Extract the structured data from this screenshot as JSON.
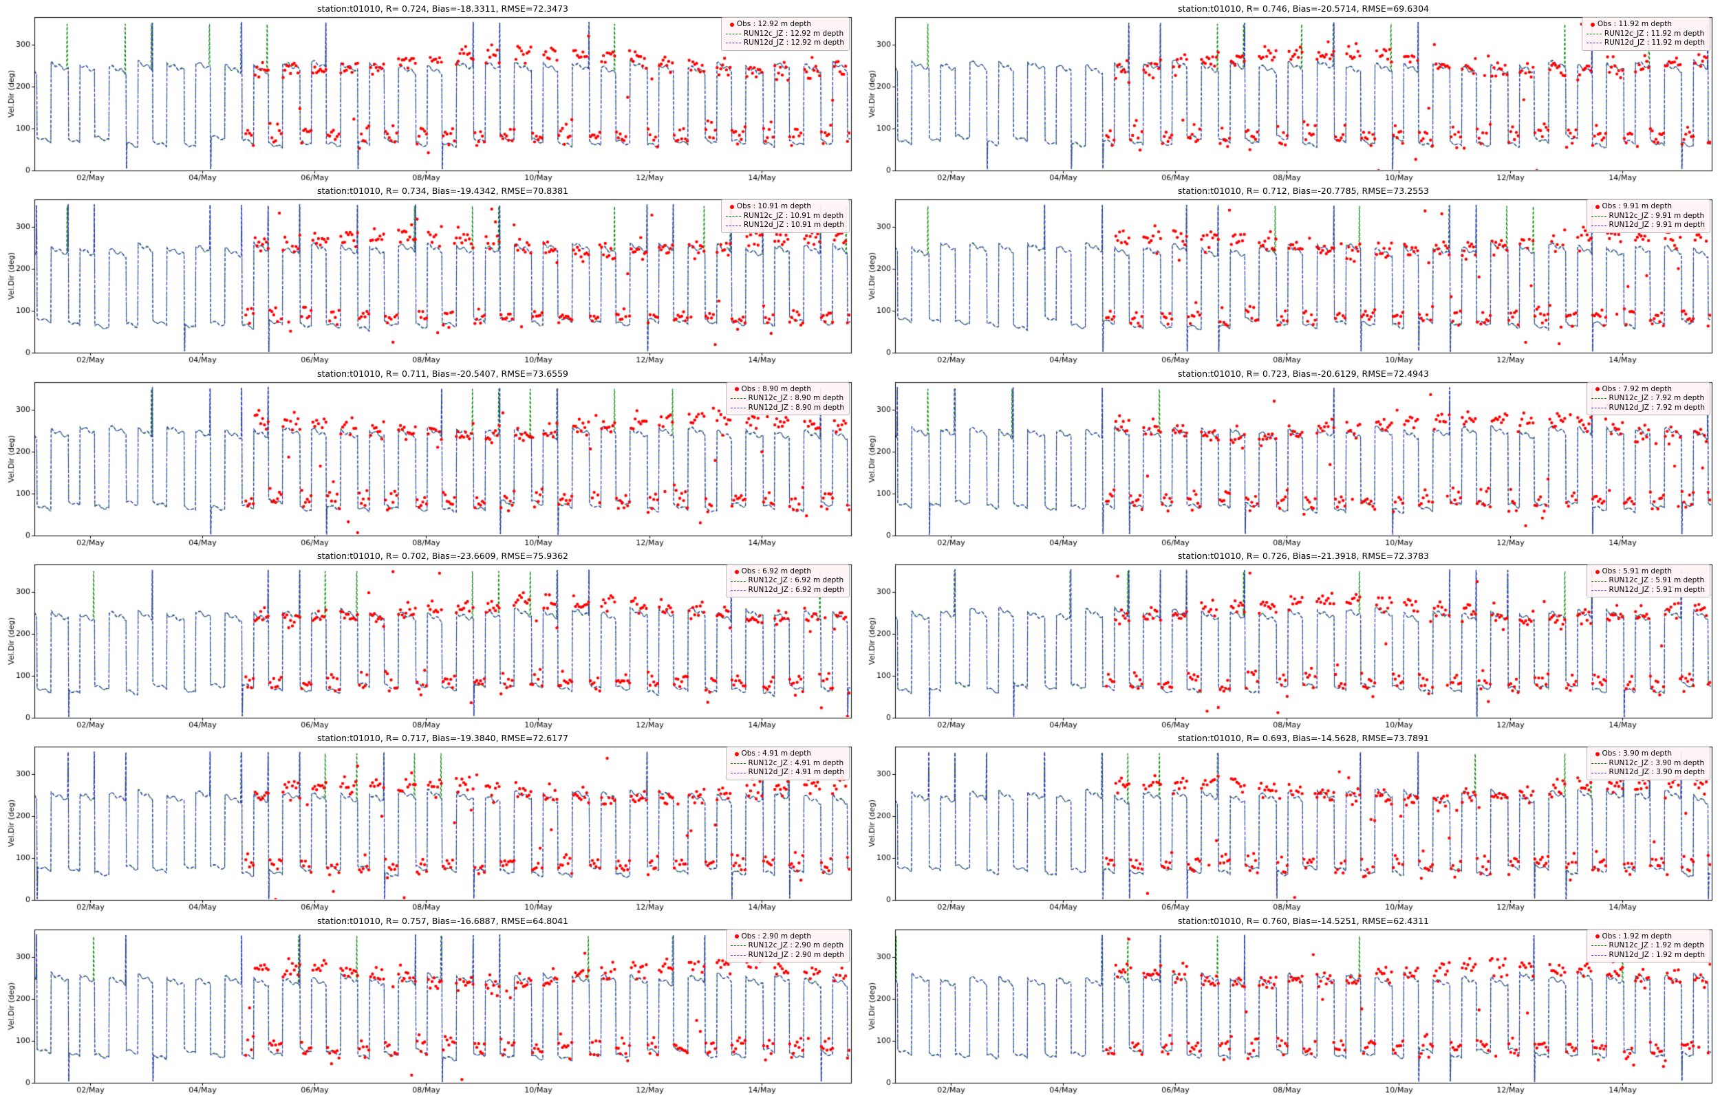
{
  "chart_data": {
    "type": "line",
    "layout": {
      "rows": 6,
      "cols": 2
    },
    "station": "t01010",
    "ylabel": "Vel.Dir (deg)",
    "ylim": [
      0,
      365
    ],
    "y_ticks": [
      0,
      100,
      200,
      300
    ],
    "xlim_days": [
      1.0,
      15.6
    ],
    "x_ticks": {
      "days": [
        2,
        4,
        6,
        8,
        10,
        12,
        14
      ],
      "labels": [
        "02/May",
        "04/May",
        "06/May",
        "08/May",
        "10/May",
        "12/May",
        "14/May"
      ]
    },
    "grid": false,
    "legend_position": "upper right",
    "series_styles": [
      {
        "key": "obs",
        "name": "Obs",
        "style": "scatter-dot",
        "color": "#ff0000"
      },
      {
        "key": "run12c",
        "name": "RUN12c_JZ",
        "style": "dashed-line",
        "color": "#008000"
      },
      {
        "key": "run12d",
        "name": "RUN12d_JZ",
        "style": "dashed-line",
        "color": "#3a2fd0"
      }
    ],
    "waveform": {
      "description": "Semidiurnal tidal current direction alternating between a ~250 deg plateau and a ~75 deg plateau with near-vertical reversals; occasional wrap-around spikes to ~350 deg and ~0 deg; observations (red dots) begin around 05/May.",
      "tidal_period_days": 0.5175,
      "model_high_plateau_deg": [
        246,
        262
      ],
      "model_low_plateau_deg": [
        64,
        84
      ],
      "obs_high_plateau_deg": [
        235,
        310
      ],
      "obs_low_plateau_deg": [
        55,
        110
      ],
      "obs_start_day": 4.78
    },
    "panels": [
      {
        "title": "station:t01010, R= 0.724, Bias=-18.3311, RMSE=72.3473",
        "station": "t01010",
        "R": 0.724,
        "Bias": -18.3311,
        "RMSE": 72.3473,
        "depth_m": 12.92,
        "seed": 101,
        "legend": {
          "obs": "Obs : 12.92 m depth",
          "run12c": "RUN12c_JZ : 12.92 m depth",
          "run12d": "RUN12d_JZ : 12.92 m depth"
        }
      },
      {
        "title": "station:t01010, R= 0.746, Bias=-20.5714, RMSE=69.6304",
        "station": "t01010",
        "R": 0.746,
        "Bias": -20.5714,
        "RMSE": 69.6304,
        "depth_m": 11.92,
        "seed": 102,
        "legend": {
          "obs": "Obs : 11.92 m depth",
          "run12c": "RUN12c_JZ : 11.92 m depth",
          "run12d": "RUN12d_JZ : 11.92 m depth"
        }
      },
      {
        "title": "station:t01010, R= 0.734, Bias=-19.4342, RMSE=70.8381",
        "station": "t01010",
        "R": 0.734,
        "Bias": -19.4342,
        "RMSE": 70.8381,
        "depth_m": 10.91,
        "seed": 103,
        "legend": {
          "obs": "Obs : 10.91 m depth",
          "run12c": "RUN12c_JZ : 10.91 m depth",
          "run12d": "RUN12d_JZ : 10.91 m depth"
        }
      },
      {
        "title": "station:t01010, R= 0.712, Bias=-20.7785, RMSE=73.2553",
        "station": "t01010",
        "R": 0.712,
        "Bias": -20.7785,
        "RMSE": 73.2553,
        "depth_m": 9.91,
        "seed": 104,
        "legend": {
          "obs": "Obs : 9.91 m depth",
          "run12c": "RUN12c_JZ : 9.91 m depth",
          "run12d": "RUN12d_JZ : 9.91 m depth"
        }
      },
      {
        "title": "station:t01010, R= 0.711, Bias=-20.5407, RMSE=73.6559",
        "station": "t01010",
        "R": 0.711,
        "Bias": -20.5407,
        "RMSE": 73.6559,
        "depth_m": 8.9,
        "seed": 105,
        "legend": {
          "obs": "Obs : 8.90 m depth",
          "run12c": "RUN12c_JZ : 8.90 m depth",
          "run12d": "RUN12d_JZ : 8.90 m depth"
        }
      },
      {
        "title": "station:t01010, R= 0.723, Bias=-20.6129, RMSE=72.4943",
        "station": "t01010",
        "R": 0.723,
        "Bias": -20.6129,
        "RMSE": 72.4943,
        "depth_m": 7.92,
        "seed": 106,
        "legend": {
          "obs": "Obs : 7.92 m depth",
          "run12c": "RUN12c_JZ : 7.92 m depth",
          "run12d": "RUN12d_JZ : 7.92 m depth"
        }
      },
      {
        "title": "station:t01010, R= 0.702, Bias=-23.6609, RMSE=75.9362",
        "station": "t01010",
        "R": 0.702,
        "Bias": -23.6609,
        "RMSE": 75.9362,
        "depth_m": 6.92,
        "seed": 107,
        "legend": {
          "obs": "Obs : 6.92 m depth",
          "run12c": "RUN12c_JZ : 6.92 m depth",
          "run12d": "RUN12d_JZ : 6.92 m depth"
        }
      },
      {
        "title": "station:t01010, R= 0.726, Bias=-21.3918, RMSE=72.3783",
        "station": "t01010",
        "R": 0.726,
        "Bias": -21.3918,
        "RMSE": 72.3783,
        "depth_m": 5.91,
        "seed": 108,
        "legend": {
          "obs": "Obs : 5.91 m depth",
          "run12c": "RUN12c_JZ : 5.91 m depth",
          "run12d": "RUN12d_JZ : 5.91 m depth"
        }
      },
      {
        "title": "station:t01010, R= 0.717, Bias=-19.3840, RMSE=72.6177",
        "station": "t01010",
        "R": 0.717,
        "Bias": -19.384,
        "RMSE": 72.6177,
        "depth_m": 4.91,
        "seed": 109,
        "legend": {
          "obs": "Obs : 4.91 m depth",
          "run12c": "RUN12c_JZ : 4.91 m depth",
          "run12d": "RUN12d_JZ : 4.91 m depth"
        }
      },
      {
        "title": "station:t01010, R= 0.693, Bias=-14.5628, RMSE=73.7891",
        "station": "t01010",
        "R": 0.693,
        "Bias": -14.5628,
        "RMSE": 73.7891,
        "depth_m": 3.9,
        "seed": 110,
        "legend": {
          "obs": "Obs : 3.90 m depth",
          "run12c": "RUN12c_JZ : 3.90 m depth",
          "run12d": "RUN12d_JZ : 3.90 m depth"
        }
      },
      {
        "title": "station:t01010, R= 0.757, Bias=-16.6887, RMSE=64.8041",
        "station": "t01010",
        "R": 0.757,
        "Bias": -16.6887,
        "RMSE": 64.8041,
        "depth_m": 2.9,
        "seed": 111,
        "legend": {
          "obs": "Obs : 2.90 m depth",
          "run12c": "RUN12c_JZ : 2.90 m depth",
          "run12d": "RUN12d_JZ : 2.90 m depth"
        }
      },
      {
        "title": "station:t01010, R= 0.760, Bias=-14.5251, RMSE=62.4311",
        "station": "t01010",
        "R": 0.76,
        "Bias": -14.5251,
        "RMSE": 62.4311,
        "depth_m": 1.92,
        "seed": 112,
        "legend": {
          "obs": "Obs : 1.92 m depth",
          "run12c": "RUN12c_JZ : 1.92 m depth",
          "run12d": "RUN12d_JZ : 1.92 m depth"
        }
      }
    ]
  }
}
